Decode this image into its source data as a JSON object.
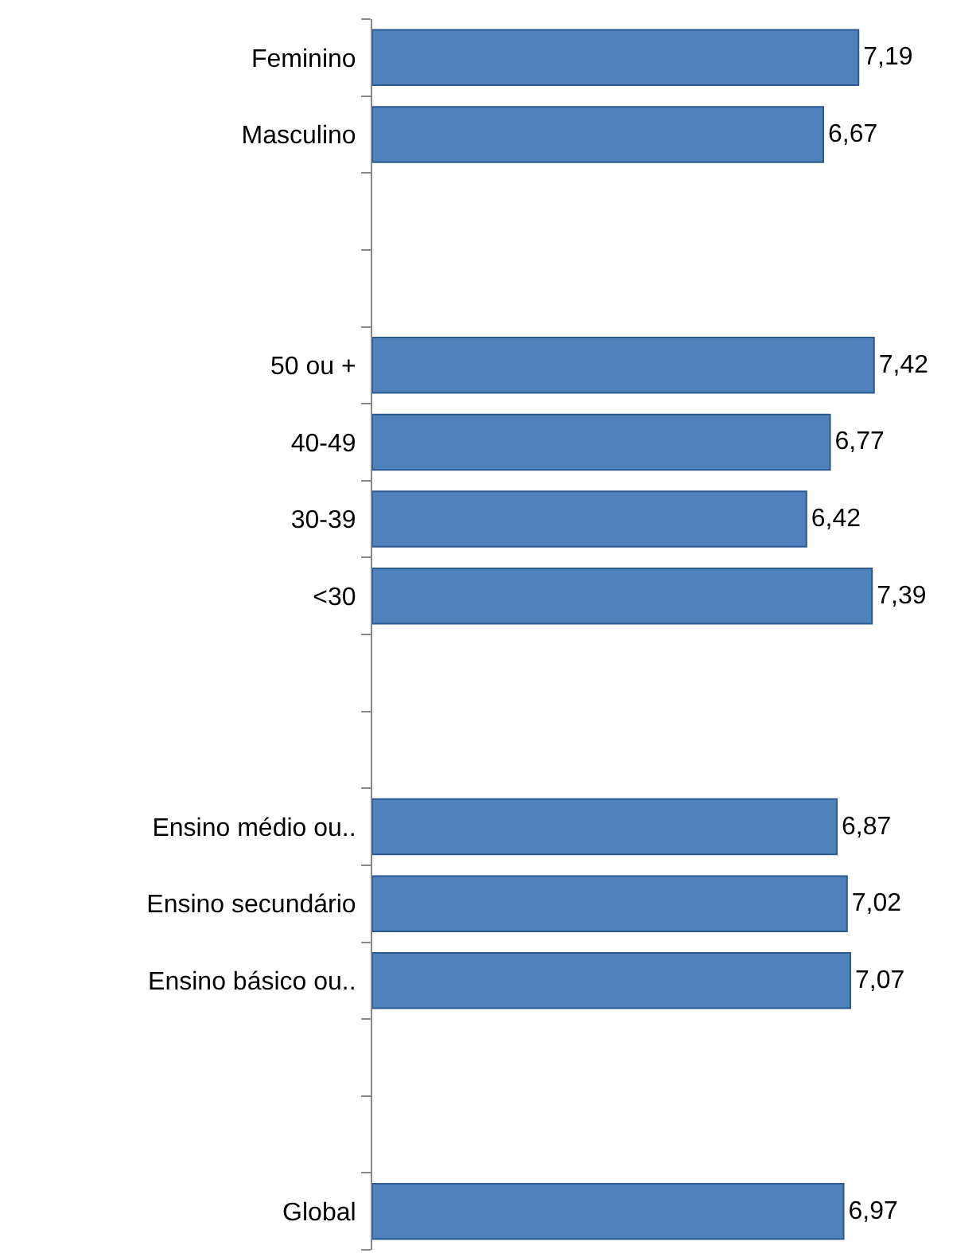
{
  "chart_data": {
    "type": "bar",
    "orientation": "horizontal",
    "categories": [
      "Feminino",
      "Masculino",
      null,
      null,
      "50 ou +",
      "40-49",
      "30-39",
      "<30",
      null,
      null,
      "Ensino médio ou..",
      "Ensino secundário",
      "Ensino básico ou..",
      null,
      null,
      "Global"
    ],
    "values": [
      7.19,
      6.67,
      null,
      null,
      7.42,
      6.77,
      6.42,
      7.39,
      null,
      null,
      6.87,
      7.02,
      7.07,
      null,
      null,
      6.97
    ],
    "value_labels": [
      "7,19",
      "6,67",
      null,
      null,
      "7,42",
      "6,77",
      "6,42",
      "7,39",
      null,
      null,
      "6,87",
      "7,02",
      "7,07",
      null,
      null,
      "6,97"
    ],
    "color": "#4f81bd"
  }
}
